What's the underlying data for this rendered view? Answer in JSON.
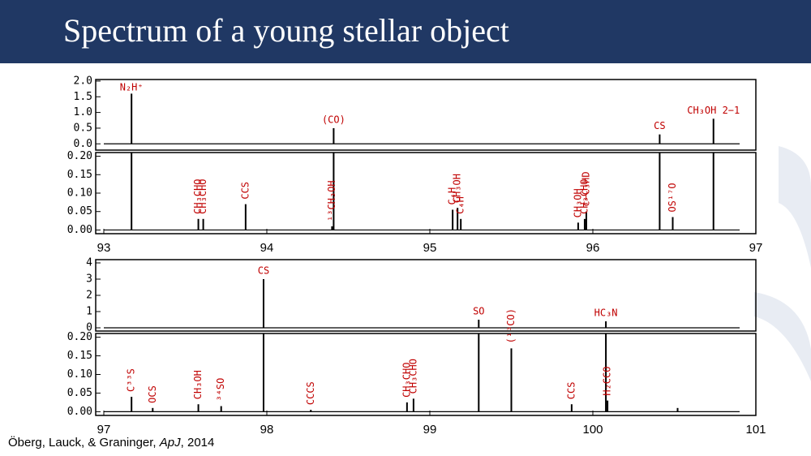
{
  "title": "Spectrum of a young stellar object",
  "credit": [
    "Öberg, Lauck, & Graninger, ",
    "ApJ",
    ", 2014"
  ],
  "chart_data": [
    {
      "type": "line",
      "xlim": [
        93,
        97
      ],
      "ylim": [
        -0.2,
        2.05
      ],
      "yticks": [
        {
          "value": 0,
          "label": "0.0"
        },
        0.5,
        {
          "value": 1,
          "label": "1.0"
        },
        1.5,
        {
          "value": 2,
          "label": "2.0"
        }
      ],
      "x": [
        93.17,
        94.41,
        96.41,
        96.74
      ],
      "values": [
        1.6,
        0.5,
        0.3,
        0.8
      ],
      "labels": [
        "N₂H⁺",
        "(CO)",
        "CS",
        "CH₃OH 2−1"
      ],
      "color": "#000000"
    },
    {
      "type": "line",
      "xlim": [
        93,
        97
      ],
      "ylim": [
        -0.01,
        0.21
      ],
      "yticks": [
        {
          "value": 0,
          "label": "0.00"
        },
        0.05,
        {
          "value": 0.1,
          "label": "0.10"
        },
        0.15,
        {
          "value": 0.2,
          "label": "0.20"
        }
      ],
      "xticks": [
        93,
        94,
        95,
        96,
        97
      ],
      "x": [
        93.17,
        93.58,
        93.61,
        93.87,
        94.4,
        94.41,
        95.14,
        95.17,
        95.19,
        95.91,
        95.95,
        95.96,
        96.41,
        96.49,
        96.74
      ],
      "values": [
        0.21,
        0.03,
        0.03,
        0.07,
        0.01,
        0.21,
        0.055,
        0.06,
        0.03,
        0.02,
        0.03,
        0.05,
        0.21,
        0.035,
        0.21
      ],
      "labels": [
        null,
        "CH₃CHO",
        "CH₃CHO",
        "CCS",
        "¹³CH₃OH",
        null,
        "C₄H",
        "CH₃OH",
        "C₄H",
        "CH₃OH",
        "CH₃CHO",
        "c−C₃HD",
        null,
        "OS¹⁷O",
        null
      ],
      "color": "#000000"
    },
    {
      "type": "line",
      "xlim": [
        97,
        101
      ],
      "ylim": [
        -0.2,
        4.2
      ],
      "yticks": [
        0,
        1,
        2,
        3,
        4
      ],
      "x": [
        97.98,
        99.3,
        100.08
      ],
      "values": [
        3.0,
        0.5,
        0.4
      ],
      "labels": [
        "CS",
        "SO",
        "HC₃N"
      ],
      "color": "#000000"
    },
    {
      "type": "line",
      "xlim": [
        97,
        101
      ],
      "ylim": [
        -0.01,
        0.21
      ],
      "yticks": [
        {
          "value": 0,
          "label": "0.00"
        },
        0.05,
        {
          "value": 0.1,
          "label": "0.10"
        },
        0.15,
        {
          "value": 0.2,
          "label": "0.20"
        }
      ],
      "xticks": [
        97,
        98,
        99,
        100,
        101
      ],
      "x": [
        97.17,
        97.3,
        97.58,
        97.72,
        97.98,
        98.27,
        98.86,
        98.9,
        99.3,
        99.5,
        99.87,
        100.08,
        100.09,
        100.52
      ],
      "values": [
        0.04,
        0.01,
        0.02,
        0.015,
        0.21,
        0.005,
        0.025,
        0.035,
        0.21,
        0.17,
        0.02,
        0.21,
        0.03,
        0.01
      ],
      "labels": [
        "C³³S",
        "OCS",
        "CH₃OH",
        "³⁴SO",
        null,
        "CCCS",
        "CH₃CHO",
        "CH₃CHO",
        null,
        "(¹³CO)",
        "CCS",
        null,
        "H₂CCO",
        null
      ],
      "color": "#000000"
    }
  ]
}
